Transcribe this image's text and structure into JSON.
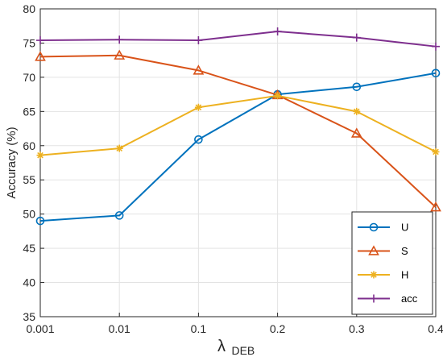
{
  "chart_data": {
    "type": "line",
    "categories": [
      "0.001",
      "0.01",
      "0.1",
      "0.2",
      "0.3",
      "0.4"
    ],
    "xlabel_symbol": "λ",
    "xlabel_subscript": "DEB",
    "ylabel": "Accuracy (%)",
    "ylim": [
      35,
      80
    ],
    "yticks": [
      35,
      40,
      45,
      50,
      55,
      60,
      65,
      70,
      75,
      80
    ],
    "grid": true,
    "legend_position": "bottom-right",
    "series": [
      {
        "name": "U",
        "marker": "circle",
        "color": "#0072BD",
        "values": [
          49.0,
          49.8,
          60.9,
          67.5,
          68.6,
          70.6
        ]
      },
      {
        "name": "S",
        "marker": "triangle",
        "color": "#D95319",
        "values": [
          73.0,
          73.2,
          71.0,
          67.4,
          61.8,
          51.0
        ]
      },
      {
        "name": "H",
        "marker": "asterisk",
        "color": "#EDB120",
        "values": [
          58.6,
          59.6,
          65.6,
          67.3,
          65.0,
          59.1
        ]
      },
      {
        "name": "acc",
        "marker": "plus",
        "color": "#7E2F8E",
        "values": [
          75.4,
          75.5,
          75.4,
          76.7,
          75.8,
          74.5
        ]
      }
    ]
  }
}
